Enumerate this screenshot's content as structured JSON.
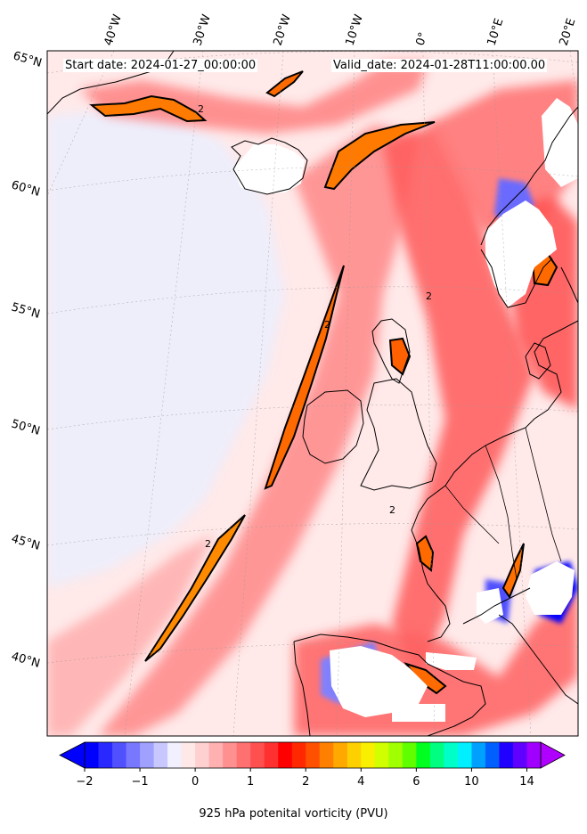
{
  "header": {
    "start_date": "Start date: 2024-01-27_00:00:00",
    "valid_date": "Valid_date: 2024-01-28T11:00:00.00"
  },
  "longitude_labels": [
    "40°W",
    "30°W",
    "20°W",
    "10°W",
    "0°",
    "10°E",
    "20°E"
  ],
  "latitude_labels": [
    "65°N",
    "60°N",
    "55°N",
    "50°N",
    "45°N",
    "40°N"
  ],
  "colorbar": {
    "title": "925 hPa potenital vorticity (PVU)",
    "tick_labels": [
      "−2",
      "−1",
      "0",
      "1",
      "2",
      "4",
      "6",
      "10",
      "14"
    ],
    "colors": [
      "#0000ff",
      "#2828ff",
      "#5050ff",
      "#7878ff",
      "#a0a0ff",
      "#c8c8ff",
      "#f0f0ff",
      "#ffe8e8",
      "#ffd0d0",
      "#ffb0b0",
      "#ff9090",
      "#ff7070",
      "#ff5050",
      "#ff3030",
      "#ff0000",
      "#ff2800",
      "#ff5000",
      "#ff8000",
      "#ffa800",
      "#ffd000",
      "#f8f000",
      "#d0ff00",
      "#a0ff00",
      "#60ff00",
      "#00ff20",
      "#00ff80",
      "#00ffc8",
      "#00f0ff",
      "#00a0ff",
      "#0060ff",
      "#2000ff",
      "#6000ff",
      "#a000ff"
    ],
    "under_color": "#0000ff",
    "over_color": "#b000ff"
  }
}
